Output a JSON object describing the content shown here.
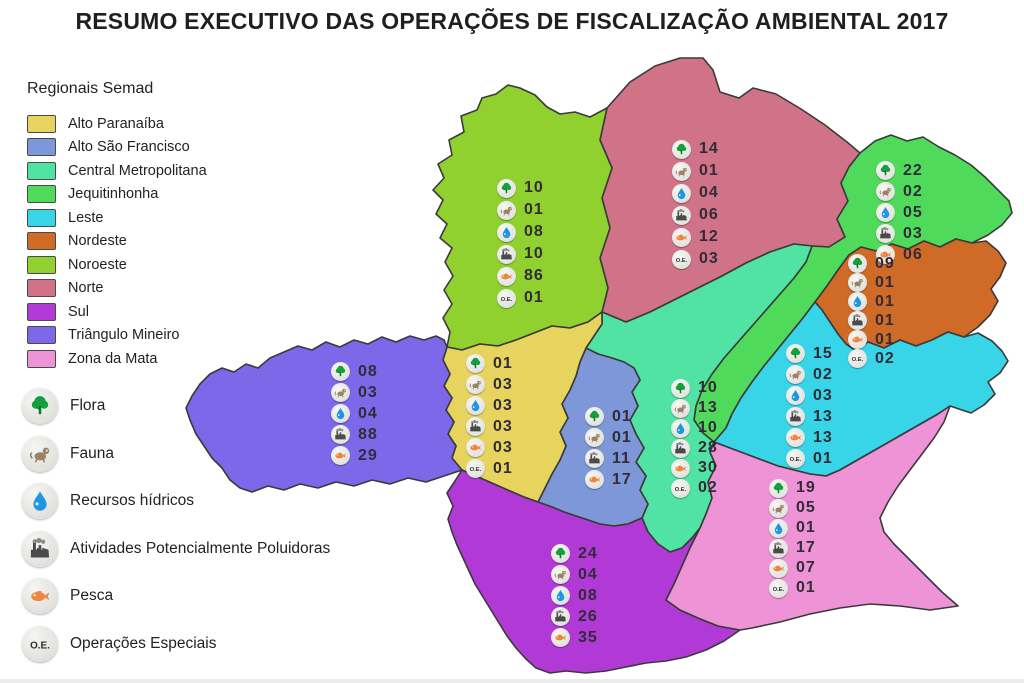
{
  "title": "RESUMO EXECUTIVO DAS OPERAÇÕES DE FISCALIZAÇÃO AMBIENTAL 2017",
  "legend": {
    "title": "Regionais Semad",
    "items": [
      {
        "label": "Alto Paranaíba",
        "color": "#e6d45f"
      },
      {
        "label": "Alto São Francisco",
        "color": "#7d97d9"
      },
      {
        "label": "Central Metropolitana",
        "color": "#50e3a4"
      },
      {
        "label": "Jequitinhonha",
        "color": "#50da5b"
      },
      {
        "label": "Leste",
        "color": "#38d4e8"
      },
      {
        "label": "Nordeste",
        "color": "#d06a27"
      },
      {
        "label": "Noroeste",
        "color": "#90d02f"
      },
      {
        "label": "Norte",
        "color": "#d07389"
      },
      {
        "label": "Sul",
        "color": "#b13ad6"
      },
      {
        "label": "Triângulo Mineiro",
        "color": "#7c68e8"
      },
      {
        "label": "Zona da Mata",
        "color": "#ee93d5"
      }
    ]
  },
  "icon_legend": [
    {
      "icon": "tree-icon",
      "label": "Flora"
    },
    {
      "icon": "monkey-icon",
      "label": "Fauna"
    },
    {
      "icon": "waterdrop-icon",
      "label": "Recursos hídricos"
    },
    {
      "icon": "factory-icon",
      "label": "Atividades Potencialmente Poluidoras"
    },
    {
      "icon": "fish-icon",
      "label": "Pesca"
    },
    {
      "icon": "oe-icon",
      "label": "Operações Especiais"
    }
  ],
  "icon_glyphs": {
    "oe": "O.E."
  },
  "chart_data": {
    "type": "table",
    "subtype": "choropleth-map",
    "title": "RESUMO EXECUTIVO DAS OPERAÇÕES DE FISCALIZAÇÃO AMBIENTAL 2017",
    "columns": [
      "Regional",
      "Flora",
      "Fauna",
      "Recursos hídricos",
      "Atividades Potencialmente Poluidoras",
      "Pesca",
      "Operações Especiais"
    ],
    "regions": [
      {
        "name": "Noroeste",
        "flora": "10",
        "fauna": "01",
        "recursos_hidricos": "08",
        "atividades_poluidoras": "10",
        "pesca": "86",
        "operacoes_especiais": "01"
      },
      {
        "name": "Norte",
        "flora": "14",
        "fauna": "01",
        "recursos_hidricos": "04",
        "atividades_poluidoras": "06",
        "pesca": "12",
        "operacoes_especiais": "03"
      },
      {
        "name": "Jequitinhonha",
        "flora": "22",
        "fauna": "02",
        "recursos_hidricos": "05",
        "atividades_poluidoras": "03",
        "pesca": "06"
      },
      {
        "name": "Nordeste",
        "flora": "09",
        "fauna": "01",
        "recursos_hidricos": "01",
        "atividades_poluidoras": "01",
        "pesca": "01",
        "operacoes_especiais": "02"
      },
      {
        "name": "Leste",
        "flora": "15",
        "fauna": "02",
        "recursos_hidricos": "03",
        "atividades_poluidoras": "13",
        "pesca": "13",
        "operacoes_especiais": "01"
      },
      {
        "name": "Central Metropolitana",
        "flora": "10",
        "fauna": "13",
        "recursos_hidricos": "10",
        "atividades_poluidoras": "28",
        "pesca": "30",
        "operacoes_especiais": "02"
      },
      {
        "name": "Alto São Francisco",
        "flora": "01",
        "fauna": "01",
        "atividades_poluidoras": "11",
        "pesca": "17"
      },
      {
        "name": "Alto Paranaíba",
        "flora": "01",
        "fauna": "03",
        "recursos_hidricos": "03",
        "atividades_poluidoras": "03",
        "pesca": "03",
        "operacoes_especiais": "01"
      },
      {
        "name": "Triângulo Mineiro",
        "flora": "08",
        "fauna": "03",
        "recursos_hidricos": "04",
        "atividades_poluidoras": "88",
        "pesca": "29"
      },
      {
        "name": "Sul",
        "flora": "24",
        "fauna": "04",
        "recursos_hidricos": "08",
        "atividades_poluidoras": "26",
        "pesca": "35"
      },
      {
        "name": "Zona da Mata",
        "flora": "19",
        "fauna": "05",
        "recursos_hidricos": "01",
        "atividades_poluidoras": "17",
        "pesca": "07",
        "operacoes_especiais": "01"
      }
    ]
  }
}
